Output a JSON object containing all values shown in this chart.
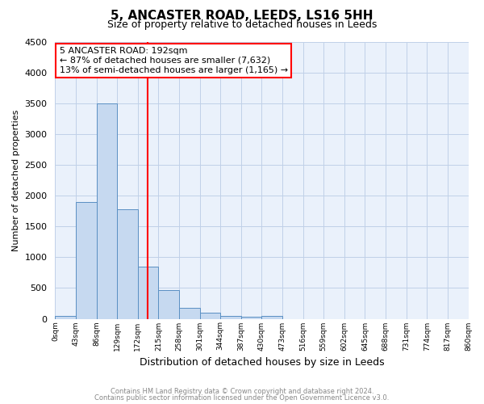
{
  "title": "5, ANCASTER ROAD, LEEDS, LS16 5HH",
  "subtitle": "Size of property relative to detached houses in Leeds",
  "xlabel": "Distribution of detached houses by size in Leeds",
  "ylabel": "Number of detached properties",
  "bin_labels": [
    "0sqm",
    "43sqm",
    "86sqm",
    "129sqm",
    "172sqm",
    "215sqm",
    "258sqm",
    "301sqm",
    "344sqm",
    "387sqm",
    "430sqm",
    "473sqm",
    "516sqm",
    "559sqm",
    "602sqm",
    "645sqm",
    "688sqm",
    "731sqm",
    "774sqm",
    "817sqm",
    "860sqm"
  ],
  "bar_heights": [
    50,
    1900,
    3500,
    1780,
    850,
    460,
    175,
    95,
    50,
    30,
    50,
    0,
    0,
    0,
    0,
    0,
    0,
    0,
    0,
    0
  ],
  "bar_color": "#c6d9f0",
  "bar_edge_color": "#5a8fc3",
  "vline_x": 4.48,
  "vline_color": "red",
  "ylim": [
    0,
    4500
  ],
  "yticks": [
    0,
    500,
    1000,
    1500,
    2000,
    2500,
    3000,
    3500,
    4000,
    4500
  ],
  "annotation_title": "5 ANCASTER ROAD: 192sqm",
  "annotation_line1": "← 87% of detached houses are smaller (7,632)",
  "annotation_line2": "13% of semi-detached houses are larger (1,165) →",
  "annotation_box_color": "#ffffff",
  "annotation_border_color": "red",
  "footer1": "Contains HM Land Registry data © Crown copyright and database right 2024.",
  "footer2": "Contains public sector information licensed under the Open Government Licence v3.0.",
  "bg_color": "#eaf1fb",
  "grid_color": "#c0d0e8",
  "title_fontsize": 11,
  "subtitle_fontsize": 9
}
